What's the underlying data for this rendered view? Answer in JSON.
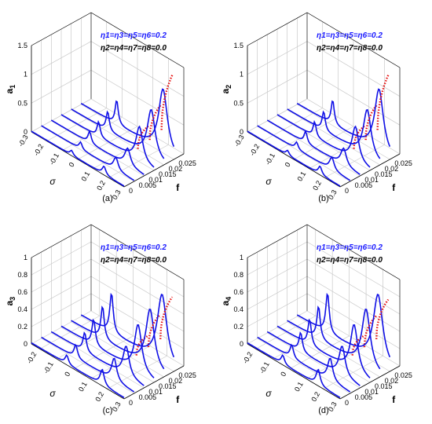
{
  "colors": {
    "blue_curve": "#1010e6",
    "red_curve": "#e61010",
    "grid": "#c8c8c8"
  },
  "chart_data": [
    {
      "type": "line",
      "panel_label": "(a)",
      "zlabel_base": "a",
      "zlabel_sub": "1",
      "xlabel": "σ",
      "ylabel": "f",
      "legend_line1": "η1=η3=η5=η6=0.2",
      "legend_line2": "η2=η4=η7=η8=0.0",
      "x_ticks": [
        "-0.3",
        "-0.2",
        "-0.1",
        "0",
        "0.1",
        "0.2",
        "0.3"
      ],
      "y_ticks": [
        "0",
        "0.005",
        "0.01",
        "0.015",
        "0.02",
        "0.025"
      ],
      "z_ticks": [
        "0",
        "0.5",
        "1",
        "1.5"
      ],
      "xlim": [
        -0.3,
        0.3
      ],
      "ylim": [
        0,
        0.03
      ],
      "zlim": [
        0,
        1.5
      ],
      "f_values": [
        0,
        0.005,
        0.01,
        0.015,
        0.02,
        0.025
      ],
      "peak_left": [
        0.08,
        0.12,
        0.2,
        0.26,
        0.33,
        0.42
      ],
      "peak_right": [
        0.14,
        0.22,
        0.3,
        0.6,
        0.82,
        1.1
      ],
      "red_max": [
        0,
        0,
        0,
        0.72,
        1.0,
        1.45
      ]
    },
    {
      "type": "line",
      "panel_label": "(b)",
      "zlabel_base": "a",
      "zlabel_sub": "2",
      "xlabel": "σ",
      "ylabel": "f",
      "legend_line1": "η1=η3=η5=η6=0.2",
      "legend_line2": "η2=η4=η7=η8=0.0",
      "x_ticks": [
        "-0.3",
        "-0.2",
        "-0.1",
        "0",
        "0.1",
        "0.2",
        "0.3"
      ],
      "y_ticks": [
        "0",
        "0.005",
        "0.01",
        "0.015",
        "0.02",
        "0.025"
      ],
      "z_ticks": [
        "0",
        "0.5",
        "1",
        "1.5"
      ],
      "xlim": [
        -0.3,
        0.3
      ],
      "ylim": [
        0,
        0.03
      ],
      "zlim": [
        0,
        1.5
      ],
      "f_values": [
        0,
        0.005,
        0.01,
        0.015,
        0.02,
        0.025
      ],
      "peak_left": [
        0.08,
        0.12,
        0.2,
        0.26,
        0.33,
        0.42
      ],
      "peak_right": [
        0.14,
        0.22,
        0.3,
        0.6,
        0.82,
        1.1
      ],
      "red_max": [
        0,
        0,
        0,
        0.72,
        1.0,
        1.45
      ]
    },
    {
      "type": "line",
      "panel_label": "(c)",
      "zlabel_base": "a",
      "zlabel_sub": "3",
      "xlabel": "σ",
      "ylabel": "f",
      "legend_line1": "η1=η3=η5=η6=0.2",
      "legend_line2": "η2=η4=η7=η8=0.0",
      "x_ticks": [
        "-0.2",
        "-0.1",
        "0",
        "0.1",
        "0.2",
        "0.3"
      ],
      "y_ticks": [
        "0",
        "0.005",
        "0.01",
        "0.015",
        "0.02",
        "0.025"
      ],
      "z_ticks": [
        "0",
        "0.2",
        "0.4",
        "0.6",
        "0.8",
        "1"
      ],
      "xlim": [
        -0.25,
        0.3
      ],
      "ylim": [
        0,
        0.03
      ],
      "zlim": [
        0,
        1
      ],
      "f_values": [
        0,
        0.005,
        0.01,
        0.015,
        0.02,
        0.025
      ],
      "peak_left": [
        0.1,
        0.15,
        0.22,
        0.3,
        0.38,
        0.46
      ],
      "peak_right": [
        0.18,
        0.26,
        0.35,
        0.55,
        0.68,
        0.8
      ],
      "red_max": [
        0,
        0,
        0,
        0.5,
        0.7,
        0.85
      ]
    },
    {
      "type": "line",
      "panel_label": "(d)",
      "zlabel_base": "a",
      "zlabel_sub": "4",
      "xlabel": "σ",
      "ylabel": "f",
      "legend_line1": "η1=η3=η5=η6=0.2",
      "legend_line2": "η2=η4=η7=η8=0.0",
      "x_ticks": [
        "-0.2",
        "-0.1",
        "0",
        "0.1",
        "0.2",
        "0.3"
      ],
      "y_ticks": [
        "0",
        "0.005",
        "0.01",
        "0.015",
        "0.02",
        "0.025"
      ],
      "z_ticks": [
        "0",
        "0.2",
        "0.4",
        "0.6",
        "0.8",
        "1"
      ],
      "xlim": [
        -0.25,
        0.3
      ],
      "ylim": [
        0,
        0.03
      ],
      "zlim": [
        0,
        1
      ],
      "f_values": [
        0,
        0.005,
        0.01,
        0.015,
        0.02,
        0.025
      ],
      "peak_left": [
        0.1,
        0.15,
        0.22,
        0.3,
        0.38,
        0.46
      ],
      "peak_right": [
        0.18,
        0.26,
        0.35,
        0.55,
        0.68,
        0.8
      ],
      "red_max": [
        0,
        0,
        0,
        0.5,
        0.68,
        0.82
      ]
    }
  ]
}
